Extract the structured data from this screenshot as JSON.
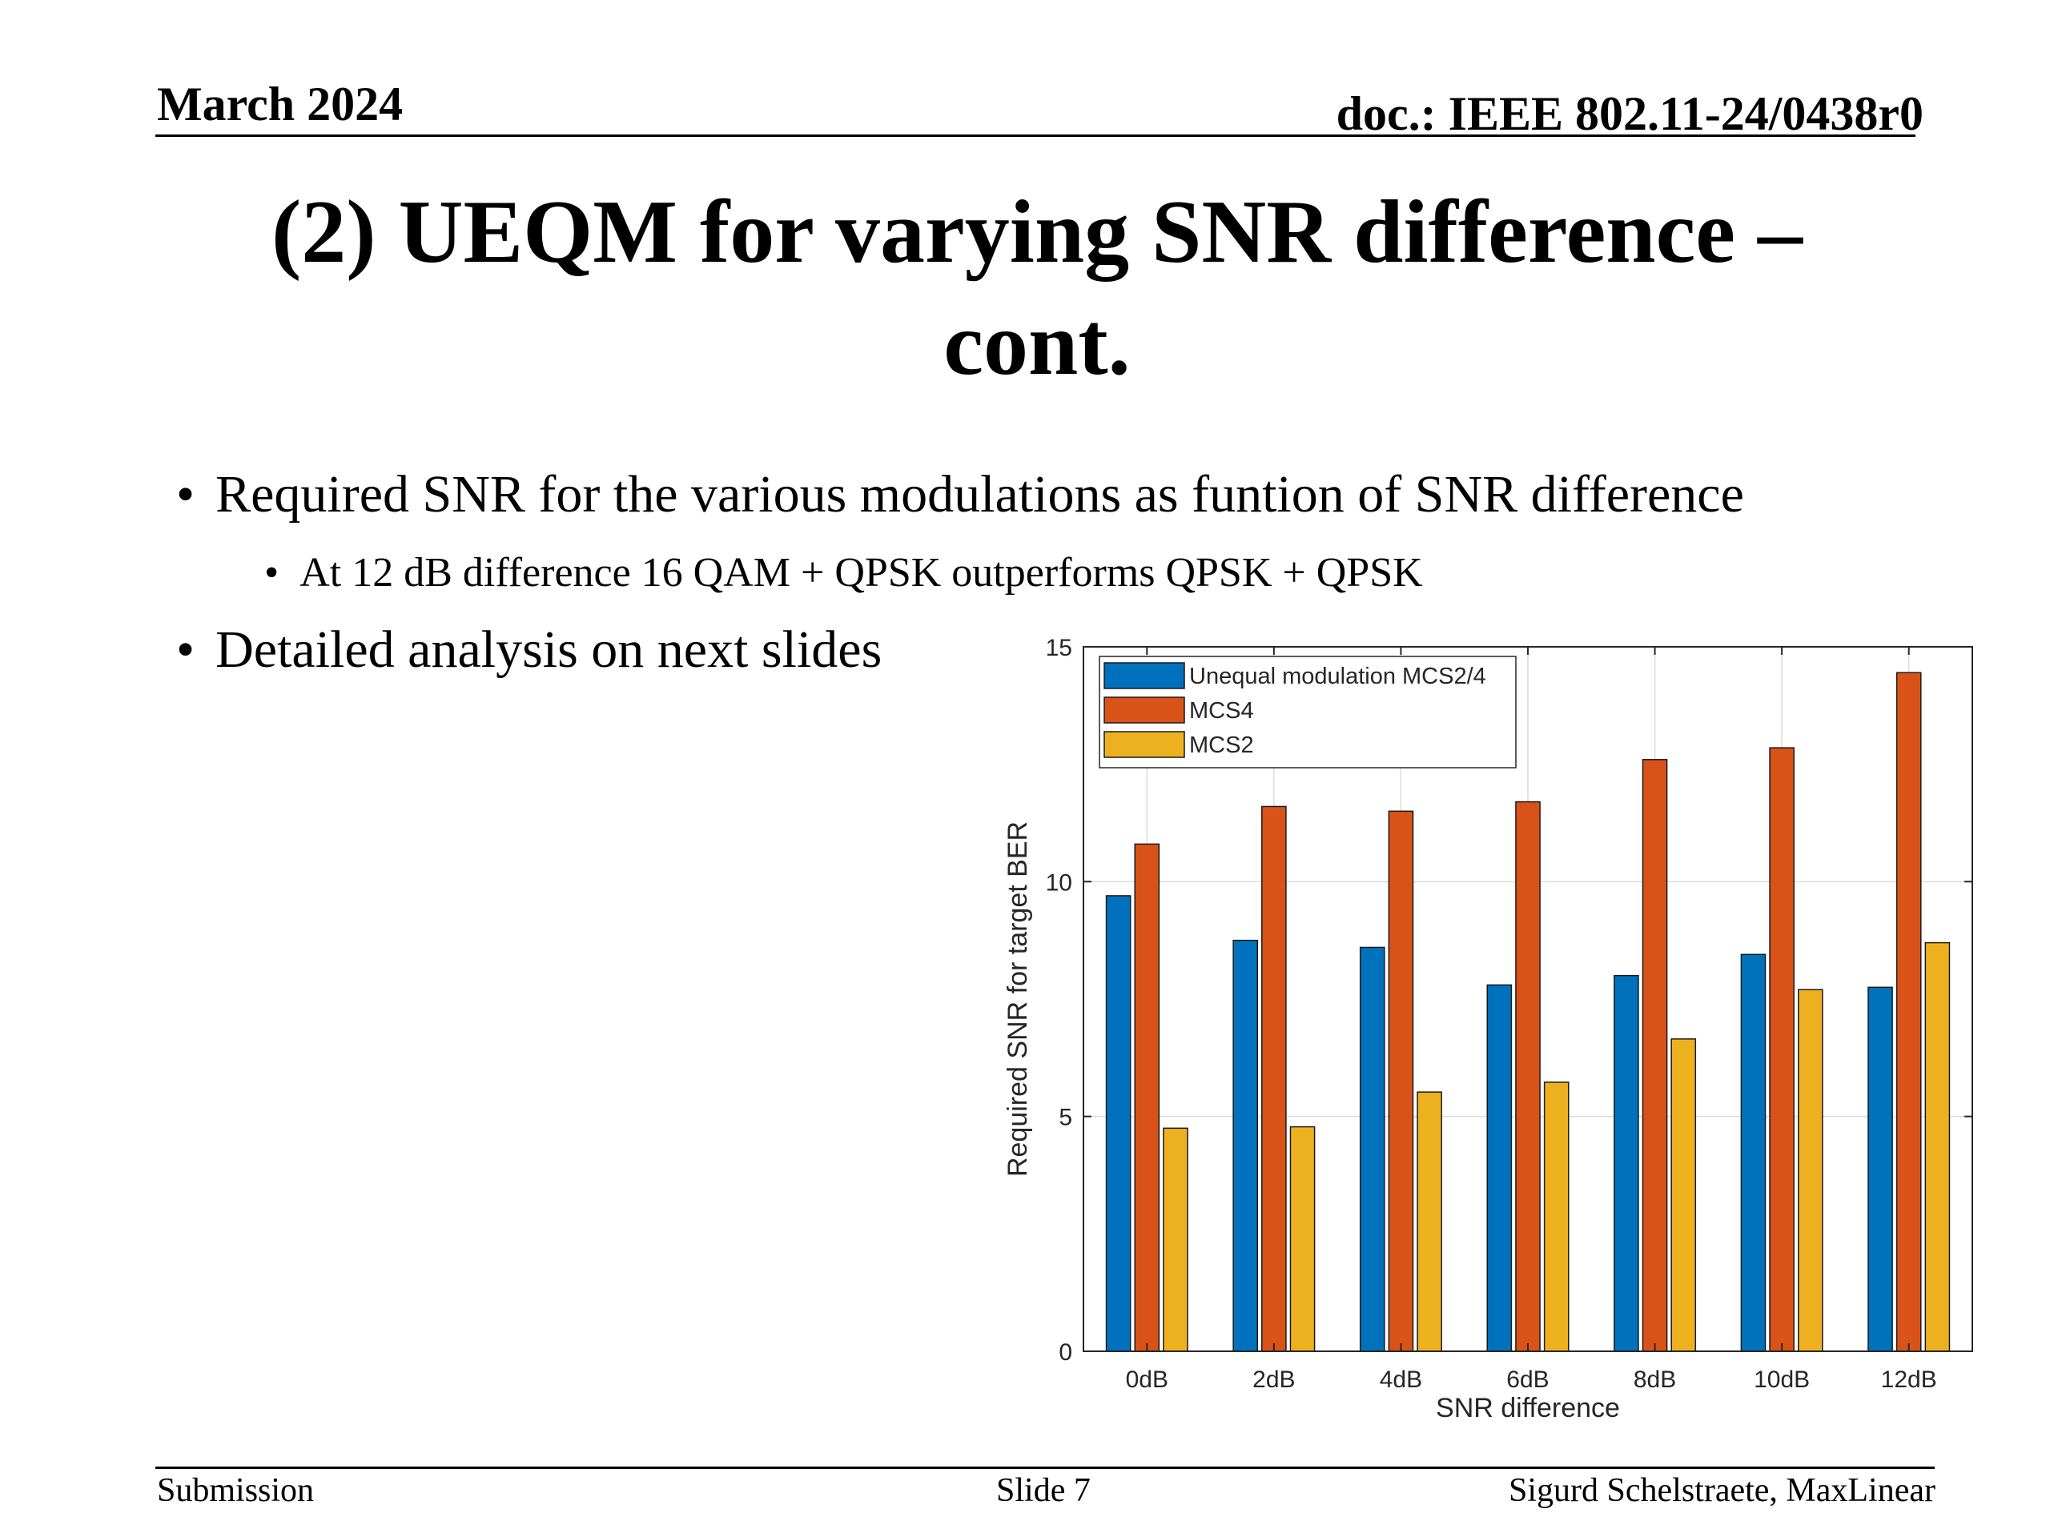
{
  "header": {
    "date": "March 2024",
    "doc": "doc.: IEEE 802.11-24/0438r0"
  },
  "title": {
    "line1": "(2) UEQM for varying SNR difference –",
    "line2": "cont."
  },
  "bullets": {
    "bullet_char": "•",
    "main1": "Required SNR for the various modulations as funtion of SNR difference",
    "sub1": "At 12 dB difference 16 QAM + QPSK  outperforms QPSK + QPSK",
    "main2": "Detailed analysis on next slides"
  },
  "footer": {
    "left": "Submission",
    "center": "Slide 7",
    "right": "Sigurd Schelstraete, MaxLinear"
  },
  "chart_data": {
    "type": "bar",
    "title": "",
    "xlabel": "SNR difference",
    "ylabel": "Required SNR for target BER",
    "categories": [
      "0dB",
      "2dB",
      "4dB",
      "6dB",
      "8dB",
      "10dB",
      "12dB"
    ],
    "ylim": [
      0,
      15
    ],
    "yticks": [
      0,
      5,
      10,
      15
    ],
    "grid": true,
    "legend_position": "top-left",
    "series": [
      {
        "name": "Unequal modulation MCS2/4",
        "color": "#0072BD",
        "values": [
          9.7,
          8.75,
          8.6,
          7.8,
          8.0,
          8.45,
          7.75
        ]
      },
      {
        "name": "MCS4",
        "color": "#D95319",
        "values": [
          10.8,
          11.6,
          11.5,
          11.7,
          12.6,
          12.85,
          14.45
        ]
      },
      {
        "name": "MCS2",
        "color": "#EDB120",
        "values": [
          4.75,
          4.78,
          5.52,
          5.73,
          6.65,
          7.7,
          8.7
        ]
      }
    ]
  }
}
